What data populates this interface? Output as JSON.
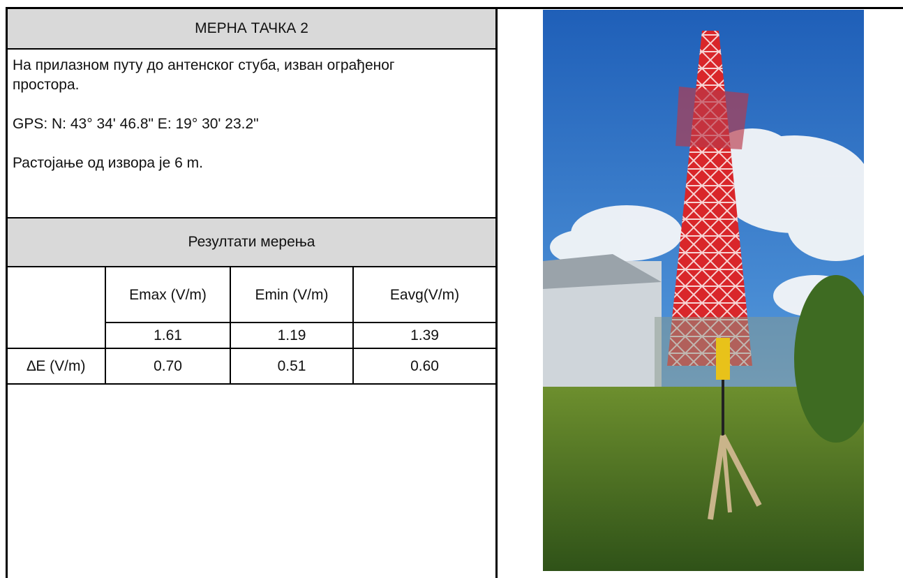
{
  "header": {
    "title": "МЕРНА ТАЧКА 2"
  },
  "description": {
    "paragraphs": [
      "На прилазном путу до антенског стуба, изван ограђеног простора.",
      "GPS: N: 43° 34' 46.8\" E: 19° 30' 23.2\"",
      "Растојање од извора је 6 m."
    ]
  },
  "results": {
    "title": "Резултати мерења",
    "columns": [
      "Emax (V/m)",
      "Emin (V/m)",
      "Eavg(V/m)"
    ],
    "values": [
      "1.61",
      "1.19",
      "1.39"
    ],
    "delta": {
      "label": "∆E (V/m)",
      "values": [
        "0.70",
        "0.51",
        "0.60"
      ]
    }
  }
}
